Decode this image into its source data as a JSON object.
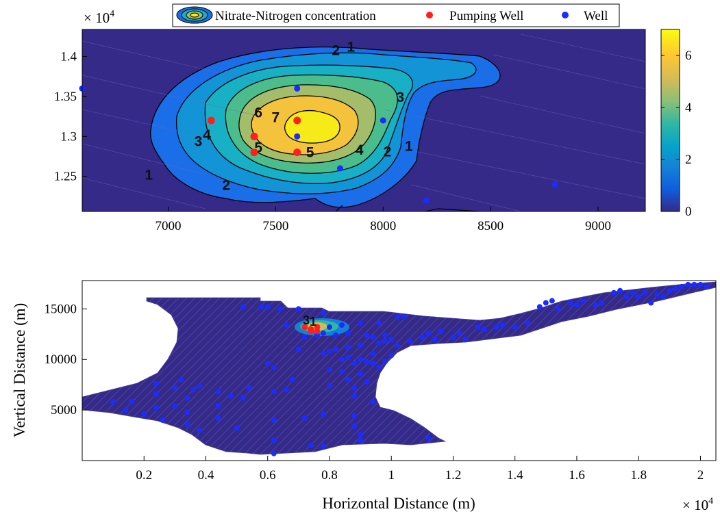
{
  "chart_data": [
    {
      "type": "contour",
      "panel": "top",
      "title": "",
      "xlim": [
        6600,
        9220
      ],
      "ylim": [
        12060,
        14340
      ],
      "x_ticks": [
        7000,
        7500,
        8000,
        8500,
        9000
      ],
      "y_ticks": [
        12500,
        13000,
        13500,
        14000
      ],
      "y_tick_labels": [
        "1.25",
        "1.3",
        "1.35",
        "1.4"
      ],
      "y_multiplier_label": "× 10",
      "y_multiplier_exp": "4",
      "colorbar": {
        "range": [
          0,
          7
        ],
        "ticks": [
          0,
          2,
          4,
          6
        ],
        "colors": [
          "#352a87",
          "#0f5cdd",
          "#1481d6",
          "#06a4ca",
          "#2eb7a4",
          "#87bf77",
          "#d1bb59",
          "#fec832",
          "#f9fb0e"
        ]
      },
      "legend": {
        "placement": "top",
        "entries": [
          "Nitrate-Nitrogen concentration",
          "Pumping Well",
          "Well"
        ]
      },
      "contour_levels": [
        1,
        2,
        3,
        4,
        5,
        6,
        7
      ],
      "contour_labels": [
        {
          "text": "1",
          "x": 7850,
          "y": 14060
        },
        {
          "text": "2",
          "x": 7780,
          "y": 14020
        },
        {
          "text": "3",
          "x": 8080,
          "y": 13430
        },
        {
          "text": "6",
          "x": 7420,
          "y": 13240
        },
        {
          "text": "7",
          "x": 7500,
          "y": 13180
        },
        {
          "text": "4",
          "x": 7180,
          "y": 12960
        },
        {
          "text": "3",
          "x": 7140,
          "y": 12880
        },
        {
          "text": "5",
          "x": 7420,
          "y": 12800
        },
        {
          "text": "5",
          "x": 7660,
          "y": 12740
        },
        {
          "text": "4",
          "x": 7890,
          "y": 12770
        },
        {
          "text": "2",
          "x": 8020,
          "y": 12750
        },
        {
          "text": "1",
          "x": 8120,
          "y": 12820
        },
        {
          "text": "1",
          "x": 6910,
          "y": 12460
        },
        {
          "text": "2",
          "x": 7270,
          "y": 12330
        }
      ],
      "pumping_wells": [
        [
          7200,
          13200
        ],
        [
          7400,
          13000
        ],
        [
          7400,
          12800
        ],
        [
          7600,
          13200
        ],
        [
          7600,
          12800
        ]
      ],
      "wells": [
        [
          6600,
          13600
        ],
        [
          7600,
          13600
        ],
        [
          7600,
          13000
        ],
        [
          8000,
          13200
        ],
        [
          7800,
          12600
        ],
        [
          8200,
          12200
        ],
        [
          8800,
          12400
        ]
      ]
    },
    {
      "type": "map-scatter",
      "panel": "bottom",
      "xlabel": "Horizontal Distance (m)",
      "ylabel": "Vertical Distance (m)",
      "xlim": [
        0,
        20500
      ],
      "ylim": [
        0,
        17800
      ],
      "x_ticks": [
        2000,
        4000,
        6000,
        8000,
        10000,
        12000,
        14000,
        16000,
        18000,
        20000
      ],
      "x_tick_labels": [
        "0.2",
        "0.4",
        "0.6",
        "0.8",
        "1",
        "1.2",
        "1.4",
        "1.6",
        "1.8",
        "2"
      ],
      "x_multiplier_label": "× 10",
      "x_multiplier_exp": "4",
      "y_ticks": [
        5000,
        10000,
        15000
      ],
      "y_tick_labels": [
        "5000",
        "10000",
        "15000"
      ],
      "pumping_wells": [
        [
          7200,
          13200
        ],
        [
          7400,
          13000
        ],
        [
          7400,
          12800
        ],
        [
          7600,
          13200
        ],
        [
          7600,
          12800
        ]
      ],
      "wells": [
        [
          1000,
          5800
        ],
        [
          1400,
          5000
        ],
        [
          1600,
          5800
        ],
        [
          2000,
          4600
        ],
        [
          2400,
          7600
        ],
        [
          2400,
          6600
        ],
        [
          2400,
          5200
        ],
        [
          2600,
          4000
        ],
        [
          3000,
          7200
        ],
        [
          3000,
          5400
        ],
        [
          3200,
          8000
        ],
        [
          3400,
          6200
        ],
        [
          3400,
          4800
        ],
        [
          3400,
          3600
        ],
        [
          3600,
          7000
        ],
        [
          3800,
          7400
        ],
        [
          3800,
          3000
        ],
        [
          4400,
          6800
        ],
        [
          4400,
          5400
        ],
        [
          4400,
          4200
        ],
        [
          4800,
          6400
        ],
        [
          5000,
          3200
        ],
        [
          5200,
          6200
        ],
        [
          5200,
          15200
        ],
        [
          5400,
          7200
        ],
        [
          5800,
          15200
        ],
        [
          6000,
          15200
        ],
        [
          6000,
          9600
        ],
        [
          6200,
          9200
        ],
        [
          6200,
          6800
        ],
        [
          6200,
          4000
        ],
        [
          6200,
          700
        ],
        [
          6200,
          2000
        ],
        [
          6400,
          15000
        ],
        [
          6600,
          7000
        ],
        [
          6600,
          13400
        ],
        [
          6800,
          8000
        ],
        [
          7000,
          15000
        ],
        [
          7000,
          11000
        ],
        [
          7200,
          12200
        ],
        [
          7200,
          4200
        ],
        [
          7400,
          1500
        ],
        [
          7600,
          12400
        ],
        [
          7800,
          14600
        ],
        [
          7800,
          12600
        ],
        [
          7800,
          10600
        ],
        [
          7800,
          4600
        ],
        [
          7800,
          1400
        ],
        [
          8000,
          13200
        ],
        [
          8000,
          10800
        ],
        [
          8000,
          9000
        ],
        [
          8000,
          7400
        ],
        [
          8200,
          12400
        ],
        [
          8200,
          11000
        ],
        [
          8400,
          13400
        ],
        [
          8400,
          10000
        ],
        [
          8400,
          8800
        ],
        [
          8600,
          12600
        ],
        [
          8600,
          11200
        ],
        [
          8600,
          10200
        ],
        [
          8600,
          8000
        ],
        [
          8800,
          9600
        ],
        [
          8800,
          7200
        ],
        [
          8800,
          6400
        ],
        [
          8800,
          4400
        ],
        [
          8800,
          3400
        ],
        [
          9000,
          13600
        ],
        [
          9000,
          11400
        ],
        [
          9000,
          10000
        ],
        [
          9000,
          8600
        ],
        [
          9000,
          2600
        ],
        [
          9000,
          2000
        ],
        [
          9200,
          12400
        ],
        [
          9200,
          9800
        ],
        [
          9200,
          7800
        ],
        [
          9400,
          12200
        ],
        [
          9400,
          10600
        ],
        [
          9400,
          9600
        ],
        [
          9400,
          5800
        ],
        [
          9600,
          13600
        ],
        [
          9600,
          11600
        ],
        [
          9600,
          9200
        ],
        [
          9800,
          12400
        ],
        [
          9800,
          11800
        ],
        [
          9800,
          9800
        ],
        [
          10000,
          12000
        ],
        [
          10000,
          10400
        ],
        [
          10200,
          14200
        ],
        [
          10200,
          11400
        ],
        [
          10400,
          14200
        ],
        [
          10600,
          11800
        ],
        [
          11000,
          12200
        ],
        [
          11200,
          12600
        ],
        [
          11200,
          2200
        ],
        [
          11400,
          12000
        ],
        [
          11600,
          12800
        ],
        [
          12000,
          12200
        ],
        [
          12200,
          12600
        ],
        [
          12400,
          12000
        ],
        [
          12800,
          13200
        ],
        [
          13000,
          13000
        ],
        [
          13400,
          13200
        ],
        [
          13600,
          13400
        ],
        [
          14000,
          13200
        ],
        [
          14400,
          13600
        ],
        [
          14800,
          15200
        ],
        [
          15000,
          15600
        ],
        [
          15200,
          15800
        ],
        [
          15400,
          15000
        ],
        [
          15800,
          15600
        ],
        [
          16000,
          15400
        ],
        [
          16200,
          15800
        ],
        [
          16600,
          15400
        ],
        [
          16800,
          15600
        ],
        [
          17200,
          16600
        ],
        [
          17400,
          16800
        ],
        [
          17600,
          16200
        ],
        [
          17800,
          16600
        ],
        [
          18000,
          16200
        ],
        [
          18200,
          16600
        ],
        [
          18400,
          15600
        ],
        [
          18600,
          16400
        ],
        [
          18800,
          16200
        ],
        [
          19000,
          16800
        ],
        [
          19200,
          17000
        ],
        [
          19400,
          17200
        ],
        [
          19600,
          17400
        ],
        [
          19800,
          17400
        ],
        [
          20000,
          17400
        ],
        [
          20200,
          17200
        ]
      ]
    }
  ],
  "colors": {
    "background_fill": "#352a87",
    "pumping_well": "#ff1f1f",
    "well": "#1a2cff",
    "contour_line": "#000000"
  }
}
